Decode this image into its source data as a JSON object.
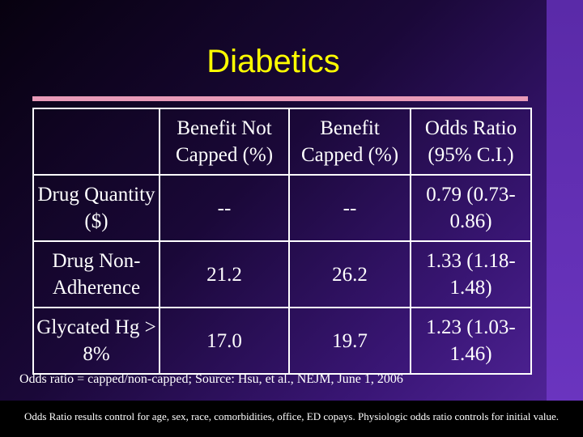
{
  "slide": {
    "title": "Diabetics",
    "table": {
      "headers": [
        "",
        "Benefit Not Capped (%)",
        "Benefit Capped (%)",
        "Odds Ratio (95% C.I.)"
      ],
      "rows": [
        [
          "Drug Quantity ($)",
          "--",
          "--",
          "0.79 (0.73-0.86)"
        ],
        [
          "Drug Non-Adherence",
          "21.2",
          "26.2",
          "1.33 (1.18-1.48)"
        ],
        [
          "Glycated Hg > 8%",
          "17.0",
          "19.7",
          "1.23 (1.03-1.46)"
        ]
      ]
    },
    "footnote": "Odds ratio = capped/non-capped; Source: Hsu, et al., NEJM, June 1, 2006",
    "bottom_note": "Odds Ratio results control for age, sex, race, comorbidities, office,  ED copays.  Physiologic odds ratio controls for initial value."
  },
  "colors": {
    "title": "#ffff00",
    "rule": "#e89ab8",
    "text": "#ffffff",
    "background_dark": "#07010f",
    "background_light": "#4f2396"
  }
}
